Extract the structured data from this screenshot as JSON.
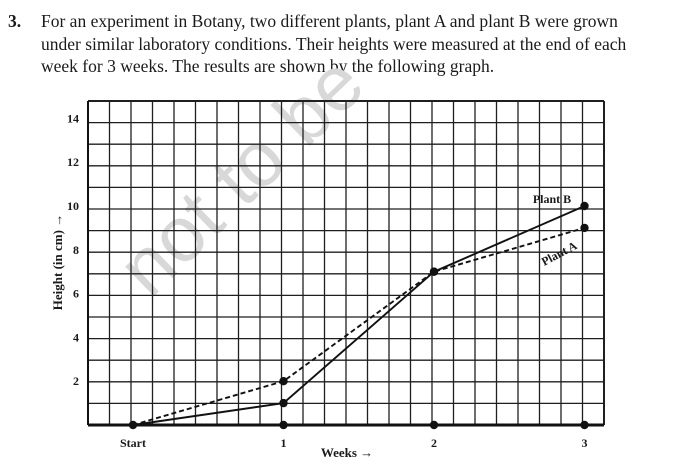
{
  "question": {
    "number": "3.",
    "lines": [
      "For an experiment in Botany, two different plants, plant A and plant B were grown",
      "under similar laboratory conditions. Their heights were measured at the end of each",
      "week for 3 weeks. The results are shown by the following graph."
    ]
  },
  "watermark": "not to be",
  "chart_data": {
    "type": "line",
    "categories": [
      "Start",
      "1",
      "2",
      "3"
    ],
    "x": [
      0,
      1,
      2,
      3
    ],
    "xlabel": "Weeks →",
    "ylabel": "Height (in cm) →",
    "ylim": [
      0,
      14.5
    ],
    "y_ticks": [
      "2",
      "4",
      "6",
      "8",
      "10",
      "12",
      "14"
    ],
    "grid": true,
    "series": [
      {
        "name": "Plant A",
        "style": "dashed",
        "values": [
          0,
          2,
          7,
          9
        ]
      },
      {
        "name": "Plant B",
        "style": "solid",
        "values": [
          0,
          1,
          7,
          10
        ]
      }
    ]
  }
}
